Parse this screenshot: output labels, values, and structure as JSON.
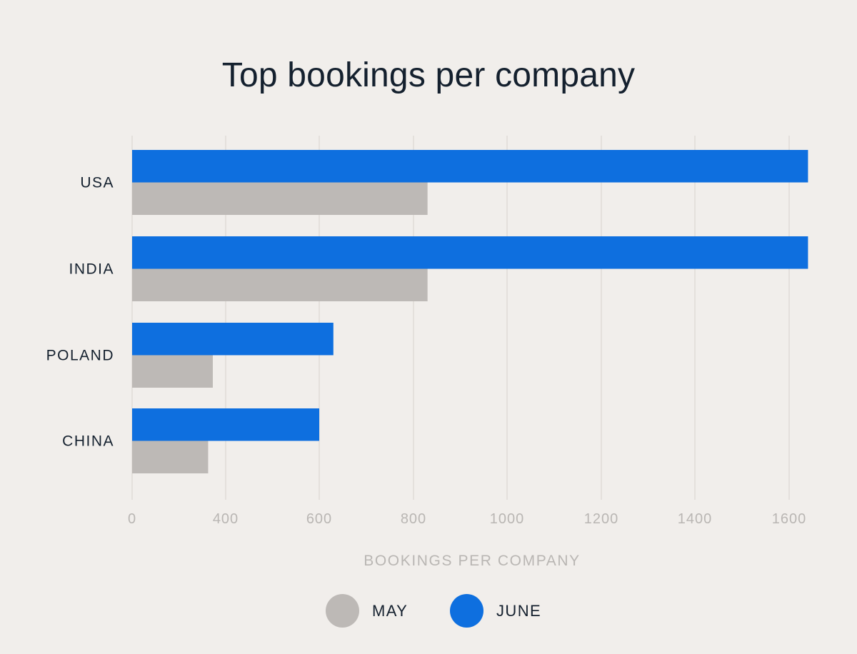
{
  "chart_data": {
    "type": "bar",
    "orientation": "horizontal",
    "title": "Top bookings per company",
    "xlabel": "BOOKINGS PER COMPANY",
    "ylabel": "",
    "categories": [
      "USA",
      "INDIA",
      "POLAND",
      "CHINA"
    ],
    "series": [
      {
        "name": "JUNE",
        "color": "#0e6fdf",
        "values": [
          1640,
          1640,
          630,
          600
        ]
      },
      {
        "name": "MAY",
        "color": "#bdb9b6",
        "values": [
          830,
          830,
          345,
          325
        ]
      }
    ],
    "xticks": [
      0,
      400,
      600,
      800,
      1000,
      1200,
      1400,
      1600
    ],
    "grid": "vertical",
    "legend": "bottom-center"
  },
  "legend": {
    "items": [
      {
        "name": "MAY",
        "color": "#bdb9b6"
      },
      {
        "name": "JUNE",
        "color": "#0e6fdf"
      }
    ]
  }
}
